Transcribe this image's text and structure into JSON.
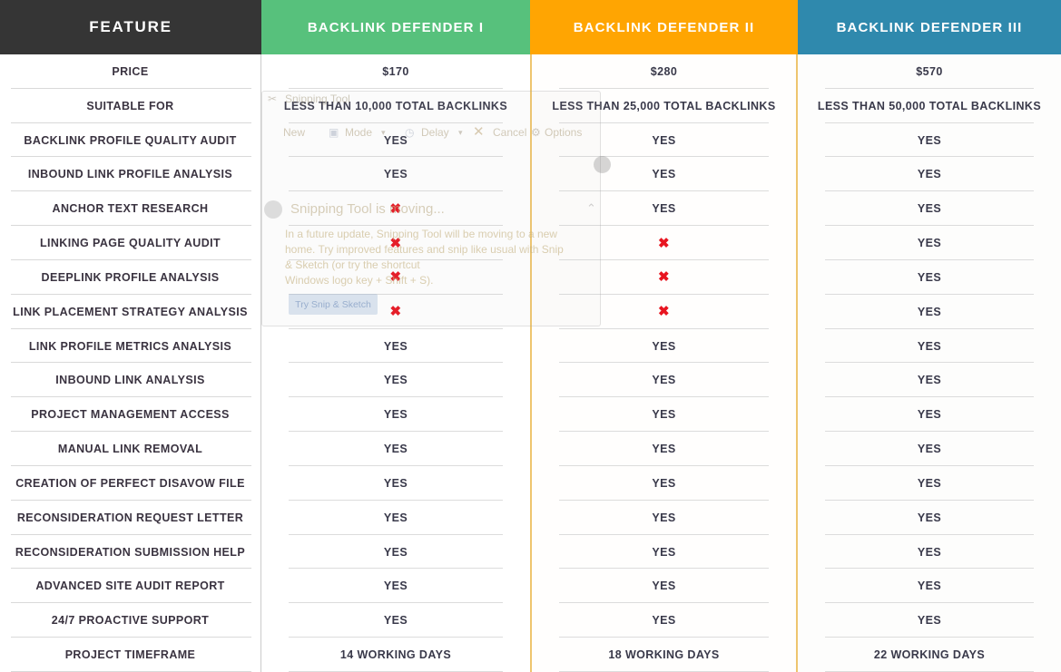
{
  "table": {
    "feature_header": "FEATURE",
    "plans": [
      {
        "name": "BACKLINK DEFENDER I",
        "color": "#57c17c",
        "featured": false
      },
      {
        "name": "BACKLINK DEFENDER II",
        "color": "#ffa502",
        "featured": true
      },
      {
        "name": "BACKLINK DEFENDER III",
        "color": "#2f89ad",
        "featured": false
      }
    ],
    "rows": [
      {
        "feature": "PRICE",
        "values": [
          "$170",
          "$280",
          "$570"
        ]
      },
      {
        "feature": "SUITABLE FOR",
        "values": [
          "LESS THAN 10,000 TOTAL BACKLINKS",
          "LESS THAN 25,000 TOTAL BACKLINKS",
          "LESS THAN 50,000 TOTAL BACKLINKS"
        ]
      },
      {
        "feature": "BACKLINK PROFILE QUALITY AUDIT",
        "values": [
          "YES",
          "YES",
          "YES"
        ]
      },
      {
        "feature": "INBOUND LINK PROFILE ANALYSIS",
        "values": [
          "YES",
          "YES",
          "YES"
        ]
      },
      {
        "feature": "ANCHOR TEXT RESEARCH",
        "values": [
          "NO",
          "YES",
          "YES"
        ]
      },
      {
        "feature": "LINKING PAGE QUALITY AUDIT",
        "values": [
          "NO",
          "NO",
          "YES"
        ]
      },
      {
        "feature": "DEEPLINK PROFILE ANALYSIS",
        "values": [
          "NO",
          "NO",
          "YES"
        ]
      },
      {
        "feature": "LINK PLACEMENT STRATEGY ANALYSIS",
        "values": [
          "NO",
          "NO",
          "YES"
        ]
      },
      {
        "feature": "LINK PROFILE METRICS ANALYSIS",
        "values": [
          "YES",
          "YES",
          "YES"
        ]
      },
      {
        "feature": "INBOUND LINK ANALYSIS",
        "values": [
          "YES",
          "YES",
          "YES"
        ]
      },
      {
        "feature": "PROJECT MANAGEMENT ACCESS",
        "values": [
          "YES",
          "YES",
          "YES"
        ]
      },
      {
        "feature": "MANUAL LINK REMOVAL",
        "values": [
          "YES",
          "YES",
          "YES"
        ]
      },
      {
        "feature": "CREATION OF PERFECT DISAVOW FILE",
        "values": [
          "YES",
          "YES",
          "YES"
        ]
      },
      {
        "feature": "RECONSIDERATION REQUEST LETTER",
        "values": [
          "YES",
          "YES",
          "YES"
        ]
      },
      {
        "feature": "RECONSIDERATION SUBMISSION HELP",
        "values": [
          "YES",
          "YES",
          "YES"
        ]
      },
      {
        "feature": "ADVANCED SITE AUDIT REPORT",
        "values": [
          "YES",
          "YES",
          "YES"
        ]
      },
      {
        "feature": "24/7 PROACTIVE SUPPORT",
        "values": [
          "YES",
          "YES",
          "YES"
        ]
      },
      {
        "feature": "PROJECT TIMEFRAME",
        "values": [
          "14 WORKING DAYS",
          "18 WORKING DAYS",
          "22 WORKING DAYS"
        ]
      }
    ],
    "no_symbol": "✖",
    "colors": {
      "header_dark": "#353535",
      "no_mark": "#e81520",
      "featured_border": "#eec56e"
    }
  },
  "ghost_overlay": {
    "window_title": "Snipping Tool",
    "toolbar": {
      "new": "New",
      "mode": "Mode",
      "delay": "Delay",
      "cancel": "Cancel",
      "options": "Options"
    },
    "dialog_title": "Snipping Tool is moving...",
    "dialog_lines": [
      "In a future update, Snipping Tool will be moving to a new",
      "home. Try improved features and snip like usual with Snip",
      "& Sketch (or try the shortcut",
      "Windows logo key + Shift + S)."
    ],
    "try_button": "Try Snip & Sketch",
    "icons": {
      "scissors": "✂",
      "mode": "▣",
      "clock": "◷",
      "close": "✕",
      "gear": "⚙",
      "caret_down": "▾",
      "chevron_up": "⌃"
    }
  }
}
